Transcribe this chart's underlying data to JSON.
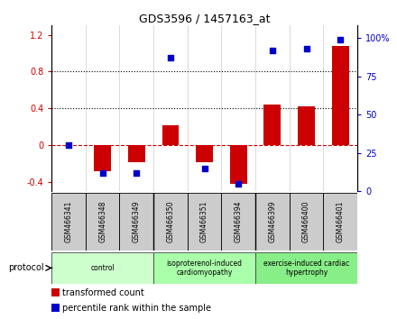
{
  "title": "GDS3596 / 1457163_at",
  "samples": [
    "GSM466341",
    "GSM466348",
    "GSM466349",
    "GSM466350",
    "GSM466351",
    "GSM466394",
    "GSM466399",
    "GSM466400",
    "GSM466401"
  ],
  "transformed_count": [
    0.0,
    -0.28,
    -0.18,
    0.22,
    -0.18,
    -0.42,
    0.44,
    0.42,
    1.08
  ],
  "percentile_rank_vals": [
    30,
    12,
    12,
    87,
    15,
    5,
    92,
    93,
    99
  ],
  "red_color": "#cc0000",
  "blue_color": "#0000cc",
  "ylim_left": [
    -0.5,
    1.3
  ],
  "ylim_right": [
    0,
    108.0
  ],
  "yticks_left": [
    -0.4,
    0.0,
    0.4,
    0.8,
    1.2
  ],
  "yticks_right": [
    0,
    25,
    50,
    75,
    100
  ],
  "ytick_labels_left": [
    "-0.4",
    "0",
    "0.4",
    "0.8",
    "1.2"
  ],
  "ytick_labels_right": [
    "0",
    "25",
    "50",
    "75",
    "100%"
  ],
  "hlines": [
    0.4,
    0.8
  ],
  "protocol_groups": [
    {
      "label": "control",
      "start": 0,
      "end": 3,
      "color": "#ccffcc"
    },
    {
      "label": "isoproterenol-induced\ncardiomyopathy",
      "start": 3,
      "end": 6,
      "color": "#aaffaa"
    },
    {
      "label": "exercise-induced cardiac\nhypertrophy",
      "start": 6,
      "end": 9,
      "color": "#88ee88"
    }
  ],
  "protocol_label": "protocol",
  "legend_items": [
    {
      "color": "#cc0000",
      "label": "transformed count"
    },
    {
      "color": "#0000cc",
      "label": "percentile rank within the sample"
    }
  ],
  "bar_width": 0.5,
  "background_color": "#ffffff"
}
